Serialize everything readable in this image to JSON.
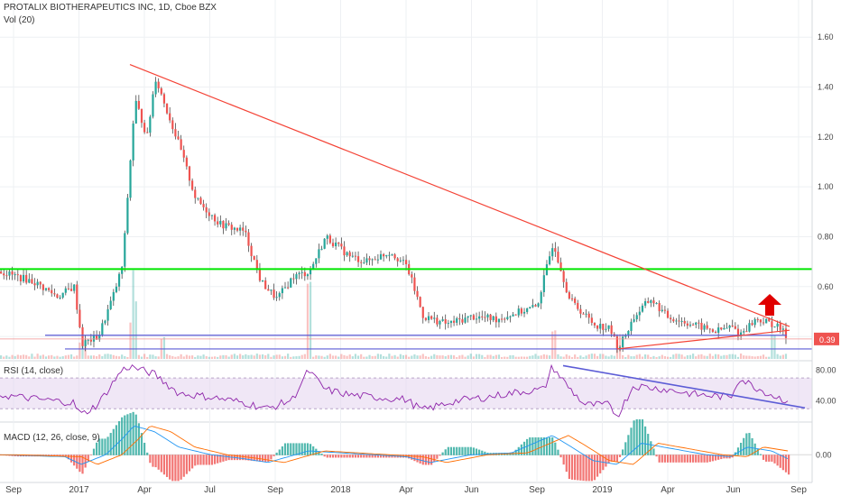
{
  "header": {
    "symbol_line": "PROTALIX BIOTHERAPEUTICS INC, 1D, Cboe BZX",
    "volume_label": "Vol (20)",
    "rsi_label": "RSI (14, close)",
    "macd_label": "MACD (12, 26, close, 9)"
  },
  "colors": {
    "up": "#26a69a",
    "down": "#ef5350",
    "trendline": "#f44336",
    "resistance": "#00e600",
    "support": "#5c5cd6",
    "rsi": "#8e24aa",
    "rsi_band": "#e6d7f0",
    "macd": "#2196f3",
    "signal": "#ff6d00",
    "arrow": "#e00000",
    "grid": "#eef0f3"
  },
  "chart_data": [
    {
      "type": "candlestick",
      "title": "PROTALIX BIOTHERAPEUTICS INC, 1D, Cboe BZX",
      "x_ticks": [
        "Sep",
        "2017",
        "Apr",
        "Jul",
        "Sep",
        "2018",
        "Apr",
        "Jun",
        "Sep",
        "2019",
        "Apr",
        "Jun",
        "Sep"
      ],
      "y_ticks": [
        "1.60",
        "1.40",
        "1.20",
        "1.00",
        "0.80",
        "0.60",
        "0.40"
      ],
      "ylim": [
        0.31,
        1.72
      ],
      "last_price": "0.39",
      "price_path": [
        [
          0,
          0.66
        ],
        [
          0.04,
          0.62
        ],
        [
          0.07,
          0.56
        ],
        [
          0.09,
          0.6
        ],
        [
          0.1,
          0.37
        ],
        [
          0.12,
          0.4
        ],
        [
          0.14,
          0.58
        ],
        [
          0.15,
          0.69
        ],
        [
          0.155,
          0.92
        ],
        [
          0.165,
          1.35
        ],
        [
          0.18,
          1.2
        ],
        [
          0.19,
          1.44
        ],
        [
          0.22,
          1.16
        ],
        [
          0.24,
          0.95
        ],
        [
          0.27,
          0.85
        ],
        [
          0.3,
          0.82
        ],
        [
          0.32,
          0.62
        ],
        [
          0.34,
          0.55
        ],
        [
          0.36,
          0.64
        ],
        [
          0.38,
          0.66
        ],
        [
          0.4,
          0.8
        ],
        [
          0.43,
          0.72
        ],
        [
          0.45,
          0.7
        ],
        [
          0.48,
          0.74
        ],
        [
          0.5,
          0.68
        ],
        [
          0.52,
          0.48
        ],
        [
          0.55,
          0.45
        ],
        [
          0.58,
          0.48
        ],
        [
          0.61,
          0.47
        ],
        [
          0.64,
          0.5
        ],
        [
          0.66,
          0.52
        ],
        [
          0.68,
          0.78
        ],
        [
          0.7,
          0.55
        ],
        [
          0.73,
          0.45
        ],
        [
          0.75,
          0.43
        ],
        [
          0.76,
          0.35
        ],
        [
          0.78,
          0.48
        ],
        [
          0.8,
          0.55
        ],
        [
          0.82,
          0.48
        ],
        [
          0.85,
          0.45
        ],
        [
          0.88,
          0.42
        ],
        [
          0.9,
          0.44
        ],
        [
          0.91,
          0.41
        ],
        [
          0.93,
          0.47
        ],
        [
          0.95,
          0.45
        ],
        [
          0.96,
          0.43
        ],
        [
          0.97,
          0.39
        ]
      ],
      "resistance_level": 0.67,
      "support_levels": [
        0.405,
        0.35
      ],
      "upper_trendline": [
        [
          0.16,
          1.49
        ],
        [
          1.0,
          0.44
        ]
      ],
      "lower_trendline": [
        [
          0.76,
          0.35
        ],
        [
          1.0,
          0.425
        ]
      ],
      "volume_spikes": [
        [
          0.1,
          0.2
        ],
        [
          0.16,
          0.45
        ],
        [
          0.165,
          0.75
        ],
        [
          0.2,
          0.25
        ],
        [
          0.38,
          1.0
        ],
        [
          0.68,
          0.35
        ],
        [
          0.76,
          0.3
        ],
        [
          0.95,
          0.3
        ]
      ]
    },
    {
      "type": "line",
      "title": "RSI (14, close)",
      "y_ticks": [
        "80.00",
        "40.00"
      ],
      "ylim": [
        15,
        90
      ],
      "band": [
        30,
        70
      ],
      "path": [
        [
          0,
          48
        ],
        [
          0.05,
          42
        ],
        [
          0.09,
          38
        ],
        [
          0.1,
          22
        ],
        [
          0.12,
          35
        ],
        [
          0.15,
          80
        ],
        [
          0.16,
          85
        ],
        [
          0.19,
          75
        ],
        [
          0.22,
          50
        ],
        [
          0.26,
          45
        ],
        [
          0.3,
          38
        ],
        [
          0.33,
          30
        ],
        [
          0.36,
          42
        ],
        [
          0.38,
          80
        ],
        [
          0.4,
          55
        ],
        [
          0.43,
          48
        ],
        [
          0.46,
          45
        ],
        [
          0.5,
          42
        ],
        [
          0.52,
          28
        ],
        [
          0.56,
          40
        ],
        [
          0.6,
          45
        ],
        [
          0.64,
          52
        ],
        [
          0.67,
          55
        ],
        [
          0.68,
          85
        ],
        [
          0.7,
          58
        ],
        [
          0.72,
          35
        ],
        [
          0.75,
          35
        ],
        [
          0.76,
          20
        ],
        [
          0.78,
          60
        ],
        [
          0.82,
          55
        ],
        [
          0.86,
          48
        ],
        [
          0.9,
          45
        ],
        [
          0.91,
          70
        ],
        [
          0.93,
          58
        ],
        [
          0.95,
          48
        ],
        [
          0.97,
          40
        ]
      ],
      "trendline": [
        [
          0.68,
          86
        ],
        [
          1.0,
          31
        ]
      ]
    },
    {
      "type": "bar",
      "title": "MACD (12, 26, close, 9)",
      "y_ticks": [
        "0.00"
      ],
      "ylim": [
        -0.12,
        0.16
      ],
      "macd_path": [
        [
          0,
          0.0
        ],
        [
          0.08,
          -0.01
        ],
        [
          0.1,
          -0.05
        ],
        [
          0.13,
          0.0
        ],
        [
          0.15,
          0.08
        ],
        [
          0.165,
          0.15
        ],
        [
          0.19,
          0.12
        ],
        [
          0.22,
          0.04
        ],
        [
          0.26,
          0.0
        ],
        [
          0.3,
          -0.02
        ],
        [
          0.33,
          -0.04
        ],
        [
          0.38,
          0.02
        ],
        [
          0.42,
          0.01
        ],
        [
          0.46,
          0.0
        ],
        [
          0.5,
          -0.01
        ],
        [
          0.53,
          -0.04
        ],
        [
          0.58,
          0.0
        ],
        [
          0.63,
          0.01
        ],
        [
          0.68,
          0.1
        ],
        [
          0.7,
          0.05
        ],
        [
          0.73,
          -0.03
        ],
        [
          0.76,
          -0.05
        ],
        [
          0.79,
          0.06
        ],
        [
          0.83,
          0.03
        ],
        [
          0.87,
          0.0
        ],
        [
          0.9,
          -0.01
        ],
        [
          0.92,
          0.04
        ],
        [
          0.95,
          0.02
        ],
        [
          0.97,
          -0.02
        ]
      ]
    }
  ]
}
